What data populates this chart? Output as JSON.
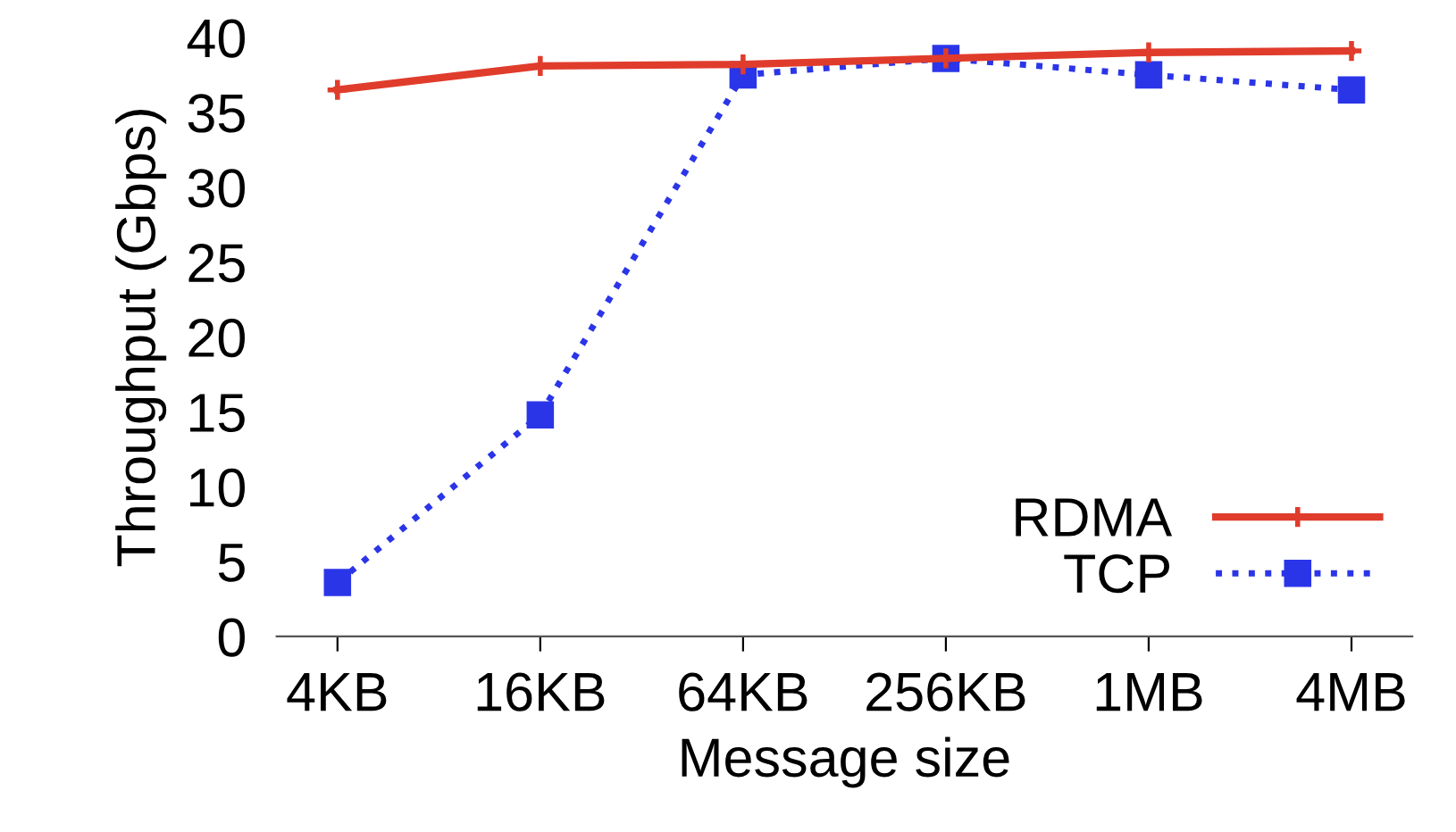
{
  "chart_data": {
    "type": "line",
    "xlabel": "Message size",
    "ylabel": "Throughput (Gbps)",
    "categories": [
      "4KB",
      "16KB",
      "64KB",
      "256KB",
      "1MB",
      "4MB"
    ],
    "series": [
      {
        "name": "RDMA",
        "color": "#e03c2c",
        "marker": "cross",
        "line_style": "solid",
        "values": [
          36.5,
          38.1,
          38.2,
          38.6,
          39.0,
          39.1
        ]
      },
      {
        "name": "TCP",
        "color": "#2b35e8",
        "marker": "square",
        "line_style": "dotted",
        "values": [
          3.6,
          14.8,
          37.5,
          38.6,
          37.5,
          36.5
        ]
      }
    ],
    "ylim": [
      0,
      40
    ],
    "yticks": [
      0,
      5,
      10,
      15,
      20,
      25,
      30,
      35,
      40
    ],
    "grid": false,
    "legend": "bottom right"
  }
}
